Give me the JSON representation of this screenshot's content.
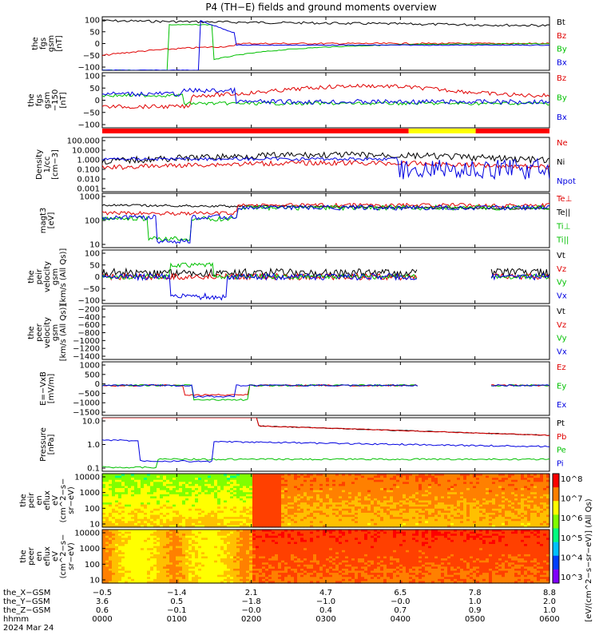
{
  "title": "P4 (TH−E) fields and ground moments overview",
  "colors": {
    "black": "#000000",
    "red": "#e00000",
    "green": "#00c000",
    "blue": "#0000e0",
    "yellow": "#ffff00",
    "bar_red": "#ff0000"
  },
  "chart_data": [
    {
      "panel": "fgs_gsm",
      "type": "line",
      "ylabel": [
        "the",
        "fgs",
        "gsm",
        "[nT]"
      ],
      "yticks": [
        "100",
        "50",
        "0",
        "−50",
        "−100"
      ],
      "yrange": [
        -100,
        100
      ],
      "legend": [
        "Bt",
        "Bz",
        "By",
        "Bx"
      ]
    },
    {
      "panel": "fgs_gsm_clip",
      "type": "line",
      "ylabel": [
        "the",
        "fgs",
        "gsm",
        "−150",
        "[nT]"
      ],
      "yticks": [
        "100",
        "50",
        "0",
        "−50",
        "−100"
      ],
      "yrange": [
        -120,
        120
      ],
      "legend": [
        "Bz",
        "By",
        "Bx"
      ]
    },
    {
      "panel": "mode_bar",
      "type": "bar",
      "segments": [
        {
          "from": 0,
          "to": 0.685,
          "color": "red"
        },
        {
          "from": 0.685,
          "to": 0.835,
          "color": "yellow"
        },
        {
          "from": 0.835,
          "to": 1,
          "color": "red"
        }
      ]
    },
    {
      "panel": "density",
      "type": "line",
      "ylabel": [
        "Density",
        "1/cc",
        "[cm−3]"
      ],
      "yticks": [
        "100.000",
        "10.000",
        "1.000",
        "0.100",
        "0.010",
        "0.001"
      ],
      "scale": "log",
      "legend": [
        "Ne",
        "Ni",
        "Npot"
      ]
    },
    {
      "panel": "temperature",
      "type": "line",
      "ylabel": [
        "magt3",
        "[eV]"
      ],
      "yticks": [
        "1000",
        "100",
        "10"
      ],
      "scale": "log",
      "legend": [
        "Te⊥",
        "Te||",
        "Ti⊥",
        "Ti||"
      ]
    },
    {
      "panel": "peir_velocity",
      "type": "line",
      "ylabel": [
        "the",
        "peir",
        "velocity",
        "gsm",
        "[km/s (All Qs)]"
      ],
      "yticks": [
        "100",
        "50",
        "0",
        "−50",
        "−100"
      ],
      "yrange": [
        -110,
        110
      ],
      "legend": [
        "Vt",
        "Vz",
        "Vy",
        "Vx"
      ]
    },
    {
      "panel": "peer_velocity",
      "type": "line",
      "ylabel": [
        "the",
        "peer",
        "velocity",
        "gsm",
        "[km/s (All Qs)]"
      ],
      "yticks": [
        "−200",
        "−400",
        "−600",
        "−800",
        "−1000",
        "−1200",
        "−1400"
      ],
      "yrange": [
        -1500,
        0
      ],
      "legend": [
        "Vt",
        "Vz",
        "Vy",
        "Vx"
      ]
    },
    {
      "panel": "efield",
      "type": "line",
      "ylabel": [
        "E=−VxB",
        "[mV/m]"
      ],
      "yticks": [
        "1000",
        "500",
        "0",
        "−500",
        "−1000",
        "−1500"
      ],
      "yrange": [
        -1500,
        1000
      ],
      "legend": [
        "Ez",
        "Ey",
        "Ex"
      ]
    },
    {
      "panel": "pressure",
      "type": "line",
      "ylabel": [
        "Pressure",
        "[nPa]"
      ],
      "yticks": [
        "10.0",
        "1.0",
        "0.1"
      ],
      "scale": "log",
      "legend": [
        "Pt",
        "Pb",
        "Pe",
        "Pi"
      ]
    },
    {
      "panel": "peir_spectrogram",
      "type": "heatmap",
      "ylabel": [
        "the",
        "peir",
        "en",
        "eflux",
        "eV",
        "(cm^2−s−",
        "sr−eV)"
      ],
      "yticks": [
        "10000",
        "1000",
        "100",
        "10"
      ]
    },
    {
      "panel": "peer_spectrogram",
      "type": "heatmap",
      "ylabel": [
        "the",
        "peer",
        "en",
        "eflux",
        "eV",
        "(cm^2−s−",
        "sr−eV)"
      ],
      "yticks": [
        "10000",
        "1000",
        "100",
        "10"
      ]
    }
  ],
  "colorbar": {
    "ticks": [
      "10^8",
      "10^7",
      "10^6",
      "10^5",
      "10^4",
      "10^3"
    ],
    "label": "[eV/(cm^2−s−sr−eV)] (All Qs)"
  },
  "xaxis": {
    "rows": [
      {
        "name": "the_X−GSM",
        "values": [
          "−0.5",
          "−1.4",
          "2.1",
          "4.7",
          "6.5",
          "7.8",
          "8.8"
        ]
      },
      {
        "name": "the_Y−GSM",
        "values": [
          "3.6",
          "0.5",
          "−1.8",
          "−1.0",
          "−0.0",
          "1.0",
          "2.0"
        ]
      },
      {
        "name": "the_Z−GSM",
        "values": [
          "0.6",
          "−0.1",
          "−0.0",
          "0.4",
          "0.7",
          "0.9",
          "1.0"
        ]
      },
      {
        "name": "hhmm",
        "values": [
          "0000",
          "0100",
          "0200",
          "0300",
          "0400",
          "0500",
          "0600"
        ]
      },
      {
        "name": "2024 Mar 24",
        "values": []
      }
    ]
  }
}
